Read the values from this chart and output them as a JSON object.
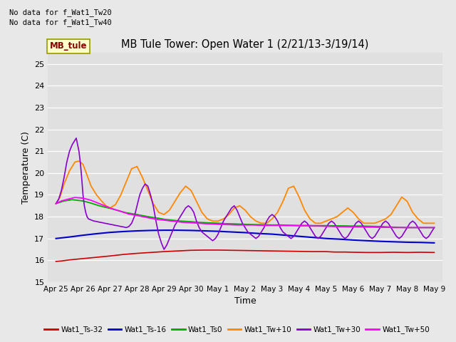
{
  "title": "MB Tule Tower: Open Water 1 (2/21/13-3/19/14)",
  "xlabel": "Time",
  "ylabel": "Temperature (C)",
  "ylim": [
    15.0,
    25.5
  ],
  "yticks": [
    15.0,
    16.0,
    17.0,
    18.0,
    19.0,
    20.0,
    21.0,
    22.0,
    23.0,
    24.0,
    25.0
  ],
  "no_data_text1": "No data for f_Wat1_Tw20",
  "no_data_text2": "No data for f_Wat1_Tw40",
  "inset_label": "MB_tule",
  "xtick_positions": [
    0,
    1,
    2,
    3,
    4,
    5,
    6,
    7,
    8,
    9,
    10,
    11,
    12,
    13,
    14
  ],
  "xtick_labels": [
    "Apr 25",
    "Apr 26",
    "Apr 27",
    "Apr 28",
    "Apr 29",
    "Apr 30",
    "May 1",
    "May 2",
    "May 3",
    "May 4",
    "May 5",
    "May 6",
    "May 7",
    "May 8",
    "May 9"
  ],
  "series": [
    {
      "label": "Wat1_Ts-32",
      "color": "#cc0000",
      "lw": 1.2,
      "x": [
        0,
        0.2,
        0.5,
        1.0,
        1.5,
        2.0,
        2.5,
        3.0,
        3.5,
        4.0,
        4.5,
        5.0,
        5.5,
        6.0,
        6.5,
        7.0,
        7.5,
        8.0,
        8.5,
        9.0,
        9.5,
        10.0,
        10.3,
        10.7,
        11.0,
        11.5,
        12.0,
        12.5,
        13.0,
        13.5,
        14.0
      ],
      "y": [
        15.95,
        15.97,
        16.02,
        16.08,
        16.14,
        16.2,
        16.27,
        16.32,
        16.36,
        16.4,
        16.43,
        16.46,
        16.47,
        16.47,
        16.46,
        16.45,
        16.44,
        16.43,
        16.42,
        16.41,
        16.4,
        16.4,
        16.38,
        16.38,
        16.37,
        16.36,
        16.36,
        16.37,
        16.36,
        16.37,
        16.36
      ]
    },
    {
      "label": "Wat1_Ts-16",
      "color": "#0000cc",
      "lw": 1.5,
      "x": [
        0,
        0.5,
        1.0,
        1.5,
        2.0,
        2.5,
        3.0,
        3.5,
        4.0,
        4.5,
        5.0,
        5.5,
        6.0,
        6.5,
        7.0,
        7.5,
        8.0,
        8.5,
        9.0,
        9.5,
        10.0,
        10.5,
        11.0,
        11.5,
        12.0,
        12.5,
        13.0,
        13.5,
        14.0
      ],
      "y": [
        17.0,
        17.07,
        17.15,
        17.22,
        17.28,
        17.32,
        17.35,
        17.37,
        17.38,
        17.38,
        17.37,
        17.35,
        17.33,
        17.3,
        17.27,
        17.23,
        17.2,
        17.15,
        17.1,
        17.05,
        17.0,
        16.97,
        16.93,
        16.9,
        16.87,
        16.85,
        16.83,
        16.82,
        16.8
      ]
    },
    {
      "label": "Wat1_Ts0",
      "color": "#00aa00",
      "lw": 1.3,
      "x": [
        0,
        0.3,
        0.6,
        1.0,
        1.3,
        1.6,
        2.0,
        2.3,
        2.6,
        3.0,
        3.2,
        3.5,
        3.8,
        4.0,
        4.3,
        4.6,
        5.0,
        5.3,
        5.6,
        6.0,
        6.3,
        6.6,
        7.0,
        7.3,
        7.6,
        8.0,
        8.3,
        8.6,
        9.0,
        9.3,
        9.6,
        10.0,
        10.3,
        10.6,
        11.0,
        11.3,
        11.6,
        12.0,
        12.5,
        13.0,
        13.5,
        14.0
      ],
      "y": [
        18.6,
        18.72,
        18.78,
        18.72,
        18.62,
        18.5,
        18.38,
        18.28,
        18.18,
        18.1,
        18.05,
        17.98,
        17.93,
        17.88,
        17.84,
        17.8,
        17.77,
        17.74,
        17.72,
        17.7,
        17.68,
        17.67,
        17.65,
        17.64,
        17.63,
        17.62,
        17.62,
        17.61,
        17.6,
        17.6,
        17.59,
        17.59,
        17.58,
        17.58,
        17.57,
        17.57,
        17.56,
        17.55,
        17.52,
        17.5,
        17.5,
        17.5
      ]
    },
    {
      "label": "Wat1_Tw+10",
      "color": "#ff8800",
      "lw": 1.3,
      "x": [
        0,
        0.15,
        0.3,
        0.5,
        0.7,
        0.85,
        1.0,
        1.15,
        1.3,
        1.5,
        1.7,
        1.85,
        2.0,
        2.2,
        2.4,
        2.6,
        2.8,
        3.0,
        3.2,
        3.4,
        3.6,
        3.8,
        4.0,
        4.2,
        4.4,
        4.6,
        4.8,
        5.0,
        5.2,
        5.4,
        5.6,
        5.8,
        6.0,
        6.2,
        6.4,
        6.6,
        6.8,
        7.0,
        7.2,
        7.4,
        7.6,
        7.8,
        8.0,
        8.2,
        8.4,
        8.6,
        8.8,
        9.0,
        9.2,
        9.4,
        9.6,
        9.8,
        10.0,
        10.2,
        10.4,
        10.6,
        10.8,
        11.0,
        11.2,
        11.4,
        11.6,
        11.8,
        12.0,
        12.2,
        12.4,
        12.6,
        12.8,
        13.0,
        13.2,
        13.4,
        13.6,
        13.8,
        14.0
      ],
      "y": [
        18.6,
        18.9,
        19.5,
        20.1,
        20.5,
        20.55,
        20.4,
        19.9,
        19.4,
        19.0,
        18.7,
        18.5,
        18.4,
        18.55,
        19.0,
        19.6,
        20.2,
        20.3,
        19.8,
        19.2,
        18.6,
        18.2,
        18.1,
        18.3,
        18.7,
        19.1,
        19.4,
        19.2,
        18.7,
        18.2,
        17.9,
        17.8,
        17.8,
        17.9,
        18.1,
        18.4,
        18.5,
        18.3,
        18.0,
        17.8,
        17.7,
        17.7,
        17.9,
        18.2,
        18.7,
        19.3,
        19.4,
        18.9,
        18.3,
        17.9,
        17.7,
        17.7,
        17.8,
        17.9,
        18.0,
        18.2,
        18.4,
        18.2,
        17.9,
        17.7,
        17.7,
        17.7,
        17.8,
        17.9,
        18.1,
        18.5,
        18.9,
        18.7,
        18.2,
        17.9,
        17.7,
        17.7,
        17.7
      ]
    },
    {
      "label": "Wat1_Tw+30",
      "color": "#8800cc",
      "lw": 1.2,
      "x": [
        0,
        0.1,
        0.2,
        0.3,
        0.4,
        0.5,
        0.6,
        0.7,
        0.75,
        0.8,
        0.85,
        0.9,
        0.95,
        1.0,
        1.05,
        1.1,
        1.15,
        1.2,
        1.3,
        1.4,
        1.5,
        1.6,
        1.7,
        1.8,
        1.9,
        2.0,
        2.1,
        2.2,
        2.3,
        2.4,
        2.5,
        2.6,
        2.7,
        2.8,
        2.9,
        3.0,
        3.1,
        3.2,
        3.3,
        3.4,
        3.5,
        3.6,
        3.7,
        3.8,
        3.9,
        4.0,
        4.1,
        4.2,
        4.3,
        4.4,
        4.5,
        4.6,
        4.7,
        4.8,
        4.9,
        5.0,
        5.1,
        5.2,
        5.3,
        5.4,
        5.5,
        5.6,
        5.7,
        5.8,
        5.9,
        6.0,
        6.1,
        6.2,
        6.3,
        6.4,
        6.5,
        6.6,
        6.7,
        6.8,
        6.9,
        7.0,
        7.1,
        7.2,
        7.3,
        7.4,
        7.5,
        7.6,
        7.7,
        7.8,
        7.9,
        8.0,
        8.1,
        8.2,
        8.3,
        8.4,
        8.5,
        8.6,
        8.7,
        8.8,
        8.9,
        9.0,
        9.1,
        9.2,
        9.3,
        9.4,
        9.5,
        9.6,
        9.7,
        9.8,
        9.9,
        10.0,
        10.1,
        10.2,
        10.3,
        10.4,
        10.5,
        10.6,
        10.7,
        10.8,
        10.9,
        11.0,
        11.1,
        11.2,
        11.3,
        11.4,
        11.5,
        11.6,
        11.7,
        11.8,
        11.9,
        12.0,
        12.1,
        12.2,
        12.3,
        12.4,
        12.5,
        12.6,
        12.7,
        12.8,
        12.9,
        13.0,
        13.1,
        13.2,
        13.3,
        13.4,
        13.5,
        13.6,
        13.7,
        13.8,
        13.9,
        14.0
      ],
      "y": [
        18.6,
        18.8,
        19.2,
        19.8,
        20.5,
        21.0,
        21.3,
        21.5,
        21.6,
        21.3,
        21.0,
        20.5,
        19.8,
        19.0,
        18.5,
        18.2,
        18.0,
        17.9,
        17.85,
        17.8,
        17.78,
        17.75,
        17.73,
        17.7,
        17.68,
        17.65,
        17.63,
        17.6,
        17.58,
        17.55,
        17.53,
        17.5,
        17.55,
        17.7,
        18.0,
        18.5,
        19.0,
        19.3,
        19.5,
        19.4,
        19.0,
        18.5,
        17.8,
        17.2,
        16.8,
        16.5,
        16.7,
        17.0,
        17.3,
        17.6,
        17.8,
        18.0,
        18.2,
        18.4,
        18.5,
        18.4,
        18.2,
        17.8,
        17.5,
        17.3,
        17.2,
        17.1,
        17.0,
        16.9,
        17.0,
        17.2,
        17.5,
        17.8,
        18.0,
        18.2,
        18.4,
        18.5,
        18.3,
        18.0,
        17.7,
        17.5,
        17.3,
        17.2,
        17.1,
        17.0,
        17.1,
        17.3,
        17.5,
        17.8,
        18.0,
        18.1,
        18.0,
        17.8,
        17.5,
        17.3,
        17.2,
        17.1,
        17.0,
        17.1,
        17.3,
        17.5,
        17.7,
        17.8,
        17.7,
        17.5,
        17.3,
        17.1,
        17.0,
        17.1,
        17.3,
        17.5,
        17.7,
        17.8,
        17.7,
        17.5,
        17.3,
        17.1,
        17.0,
        17.1,
        17.3,
        17.5,
        17.7,
        17.8,
        17.7,
        17.5,
        17.3,
        17.1,
        17.0,
        17.1,
        17.3,
        17.5,
        17.7,
        17.8,
        17.7,
        17.5,
        17.3,
        17.1,
        17.0,
        17.1,
        17.3,
        17.5,
        17.7,
        17.8,
        17.7,
        17.5,
        17.3,
        17.1,
        17.0,
        17.1,
        17.3,
        17.5
      ]
    },
    {
      "label": "Wat1_Tw+50",
      "color": "#ff00ff",
      "lw": 1.3,
      "x": [
        0,
        0.2,
        0.5,
        0.7,
        1.0,
        1.3,
        1.5,
        1.7,
        2.0,
        2.3,
        2.5,
        2.7,
        3.0,
        3.3,
        3.5,
        3.7,
        4.0,
        4.3,
        4.5,
        4.7,
        5.0,
        5.3,
        5.5,
        5.7,
        6.0,
        6.3,
        6.5,
        6.7,
        7.0,
        7.3,
        7.5,
        7.7,
        8.0,
        8.3,
        8.5,
        8.7,
        9.0,
        9.3,
        9.5,
        9.7,
        10.0,
        10.3,
        10.5,
        10.7,
        11.0,
        11.3,
        11.5,
        11.7,
        12.0,
        12.3,
        12.5,
        12.7,
        13.0,
        13.3,
        13.5,
        13.7,
        14.0
      ],
      "y": [
        18.6,
        18.72,
        18.82,
        18.88,
        18.85,
        18.75,
        18.65,
        18.55,
        18.4,
        18.28,
        18.2,
        18.12,
        18.05,
        17.98,
        17.93,
        17.88,
        17.84,
        17.8,
        17.77,
        17.74,
        17.72,
        17.7,
        17.68,
        17.67,
        17.65,
        17.64,
        17.63,
        17.62,
        17.62,
        17.62,
        17.61,
        17.6,
        17.6,
        17.6,
        17.59,
        17.59,
        17.58,
        17.58,
        17.57,
        17.57,
        17.56,
        17.55,
        17.54,
        17.54,
        17.53,
        17.53,
        17.52,
        17.52,
        17.51,
        17.51,
        17.5,
        17.5,
        17.5,
        17.5,
        17.5,
        17.5,
        17.5
      ]
    }
  ],
  "legend_entries": [
    {
      "label": "Wat1_Ts-32",
      "color": "#cc0000"
    },
    {
      "label": "Wat1_Ts-16",
      "color": "#0000cc"
    },
    {
      "label": "Wat1_Ts0",
      "color": "#00aa00"
    },
    {
      "label": "Wat1_Tw+10",
      "color": "#ff8800"
    },
    {
      "label": "Wat1_Tw+30",
      "color": "#8800cc"
    },
    {
      "label": "Wat1_Tw+50",
      "color": "#ff00ff"
    }
  ]
}
